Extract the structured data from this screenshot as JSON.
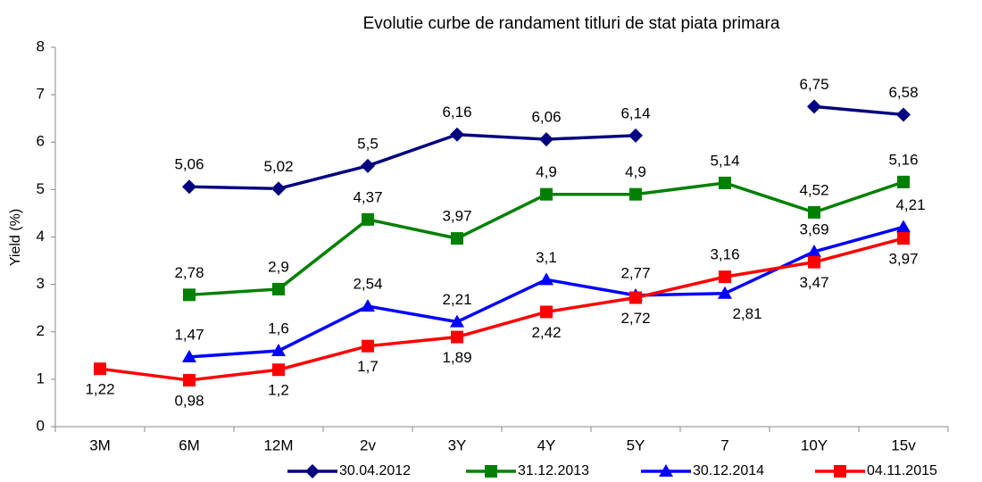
{
  "chart_data": {
    "type": "line",
    "title": "Evolutie curbe de randament titluri de stat piata primara",
    "y_label": "Yield (%)",
    "categories": [
      "3M",
      "6M",
      "12M",
      "2v",
      "3Y",
      "4Y",
      "5Y",
      "7",
      "10Y",
      "15v"
    ],
    "ylim": [
      0,
      8
    ],
    "yticks": [
      0,
      1,
      2,
      3,
      4,
      5,
      6,
      7,
      8
    ],
    "grid": false,
    "legend": "bottom",
    "series": [
      {
        "name": "30.04.2012",
        "color": "#000080",
        "marker": "diamond",
        "values": [
          null,
          5.06,
          5.02,
          5.5,
          6.16,
          6.06,
          6.14,
          null,
          6.75,
          6.58
        ],
        "value_labels": [
          null,
          "5,06",
          "5,02",
          "5,5",
          "6,16",
          "6,06",
          "6,14",
          null,
          "6,75",
          "6,58"
        ]
      },
      {
        "name": "31.12.2013",
        "color": "#008000",
        "marker": "square",
        "values": [
          null,
          2.78,
          2.9,
          4.37,
          3.97,
          4.9,
          4.9,
          5.14,
          4.52,
          5.16
        ],
        "value_labels": [
          null,
          "2,78",
          "2,9",
          "4,37",
          "3,97",
          "4,9",
          "4,9",
          "5,14",
          "4,52",
          "5,16"
        ]
      },
      {
        "name": "30.12.2014",
        "color": "#0000ff",
        "marker": "triangle",
        "values": [
          null,
          1.47,
          1.6,
          2.54,
          2.21,
          3.1,
          2.77,
          2.81,
          3.69,
          4.21
        ],
        "value_labels": [
          null,
          "1,47",
          "1,6",
          "2,54",
          "2,21",
          "3,1",
          "2,77",
          "2,81",
          "3,69",
          "4,21"
        ]
      },
      {
        "name": "04.11.2015",
        "color": "#ff0000",
        "marker": "square",
        "values": [
          1.22,
          0.98,
          1.2,
          1.7,
          1.89,
          2.42,
          2.72,
          3.16,
          3.47,
          3.97
        ],
        "value_labels": [
          "1,22",
          "0,98",
          "1,2",
          "1,7",
          "1,89",
          "2,42",
          "2,72",
          "3,16",
          "3,47",
          "3,97"
        ]
      }
    ]
  }
}
